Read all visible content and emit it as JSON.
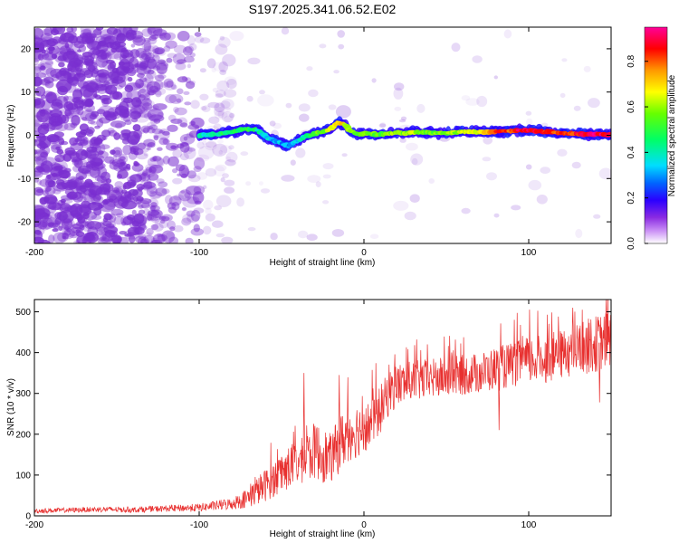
{
  "page": {
    "title": "S197.2025.341.06.52.E02"
  },
  "colors": {
    "snr_line": "#e8302f",
    "blob": "#7a2fd0",
    "ridge": "#1fd21f"
  },
  "chart_data": [
    {
      "type": "heatmap",
      "xlabel": "Height of straight line (km)",
      "ylabel": "Frequency (Hz)",
      "xlim": [
        -200,
        150
      ],
      "ylim": [
        -25,
        25
      ],
      "xticks": [
        -200,
        -100,
        0,
        100
      ],
      "yticks": [
        -20,
        -10,
        0,
        10,
        20
      ],
      "ridge": {
        "x": [
          -100,
          -90,
          -80,
          -72,
          -65,
          -58,
          -52,
          -46,
          -40,
          -35,
          -30,
          -25,
          -20,
          -16,
          -12,
          -8,
          -4,
          0,
          5,
          10,
          15,
          20,
          25,
          30,
          40,
          50,
          60,
          70,
          80,
          90,
          95,
          100,
          110,
          120,
          130,
          140,
          150
        ],
        "freq": [
          0.0,
          0.2,
          0.8,
          1.5,
          1.3,
          -0.8,
          -1.5,
          -2.5,
          -1.2,
          -0.2,
          0.4,
          0.8,
          1.5,
          3.0,
          2.5,
          1.0,
          0.2,
          0.5,
          0.3,
          0.2,
          0.4,
          0.6,
          0.5,
          0.7,
          0.6,
          0.5,
          0.8,
          0.7,
          0.9,
          1.0,
          1.2,
          1.1,
          0.8,
          0.5,
          0.3,
          0.2,
          0.1
        ],
        "amplitude": [
          0.4,
          0.45,
          0.5,
          0.5,
          0.45,
          0.35,
          0.35,
          0.3,
          0.35,
          0.45,
          0.55,
          0.6,
          0.65,
          0.75,
          0.7,
          0.6,
          0.55,
          0.6,
          0.6,
          0.55,
          0.6,
          0.65,
          0.6,
          0.65,
          0.6,
          0.6,
          0.65,
          0.7,
          0.9,
          0.85,
          0.95,
          0.95,
          0.9,
          0.85,
          0.9,
          0.95,
          0.95
        ]
      }
    },
    {
      "type": "colorbar",
      "label": "Normalized spectral amplitude",
      "range": [
        0,
        0.95
      ],
      "ticks": [
        "0.0",
        "0.2",
        "0.4",
        "0.6",
        "0.8"
      ],
      "tick_values": [
        0.0,
        0.2,
        0.4,
        0.6,
        0.8
      ]
    },
    {
      "type": "line",
      "xlabel": "Height of straight line (km)",
      "ylabel": "SNR (10 * v/v)",
      "xlim": [
        -200,
        150
      ],
      "ylim": [
        0,
        530
      ],
      "xticks": [
        -200,
        -100,
        0,
        100
      ],
      "yticks": [
        0,
        100,
        200,
        300,
        400,
        500
      ],
      "series": [
        {
          "name": "SNR",
          "x": [
            -200,
            -180,
            -160,
            -140,
            -120,
            -100,
            -90,
            -80,
            -70,
            -65,
            -60,
            -55,
            -50,
            -45,
            -40,
            -35,
            -30,
            -25,
            -20,
            -15,
            -10,
            -5,
            0,
            5,
            10,
            15,
            20,
            30,
            40,
            50,
            60,
            70,
            80,
            90,
            100,
            110,
            120,
            130,
            140,
            150
          ],
          "y": [
            12,
            14,
            16,
            15,
            18,
            20,
            25,
            30,
            45,
            60,
            75,
            90,
            105,
            120,
            130,
            140,
            160,
            150,
            140,
            175,
            200,
            210,
            215,
            230,
            260,
            300,
            320,
            330,
            335,
            340,
            345,
            350,
            360,
            370,
            380,
            385,
            395,
            410,
            420,
            435
          ],
          "noise": [
            6,
            6,
            7,
            7,
            8,
            10,
            12,
            15,
            25,
            35,
            40,
            45,
            50,
            55,
            55,
            60,
            70,
            70,
            60,
            70,
            70,
            70,
            60,
            60,
            60,
            55,
            55,
            50,
            50,
            50,
            50,
            50,
            55,
            55,
            60,
            60,
            60,
            65,
            70,
            70
          ]
        }
      ],
      "spikes": [
        {
          "x": -36.4,
          "y": 350
        },
        {
          "x": -15,
          "y": 345
        },
        {
          "x": 82,
          "y": 210
        },
        {
          "x": 143,
          "y": 278
        },
        {
          "x": 147,
          "y": 530
        }
      ]
    }
  ]
}
